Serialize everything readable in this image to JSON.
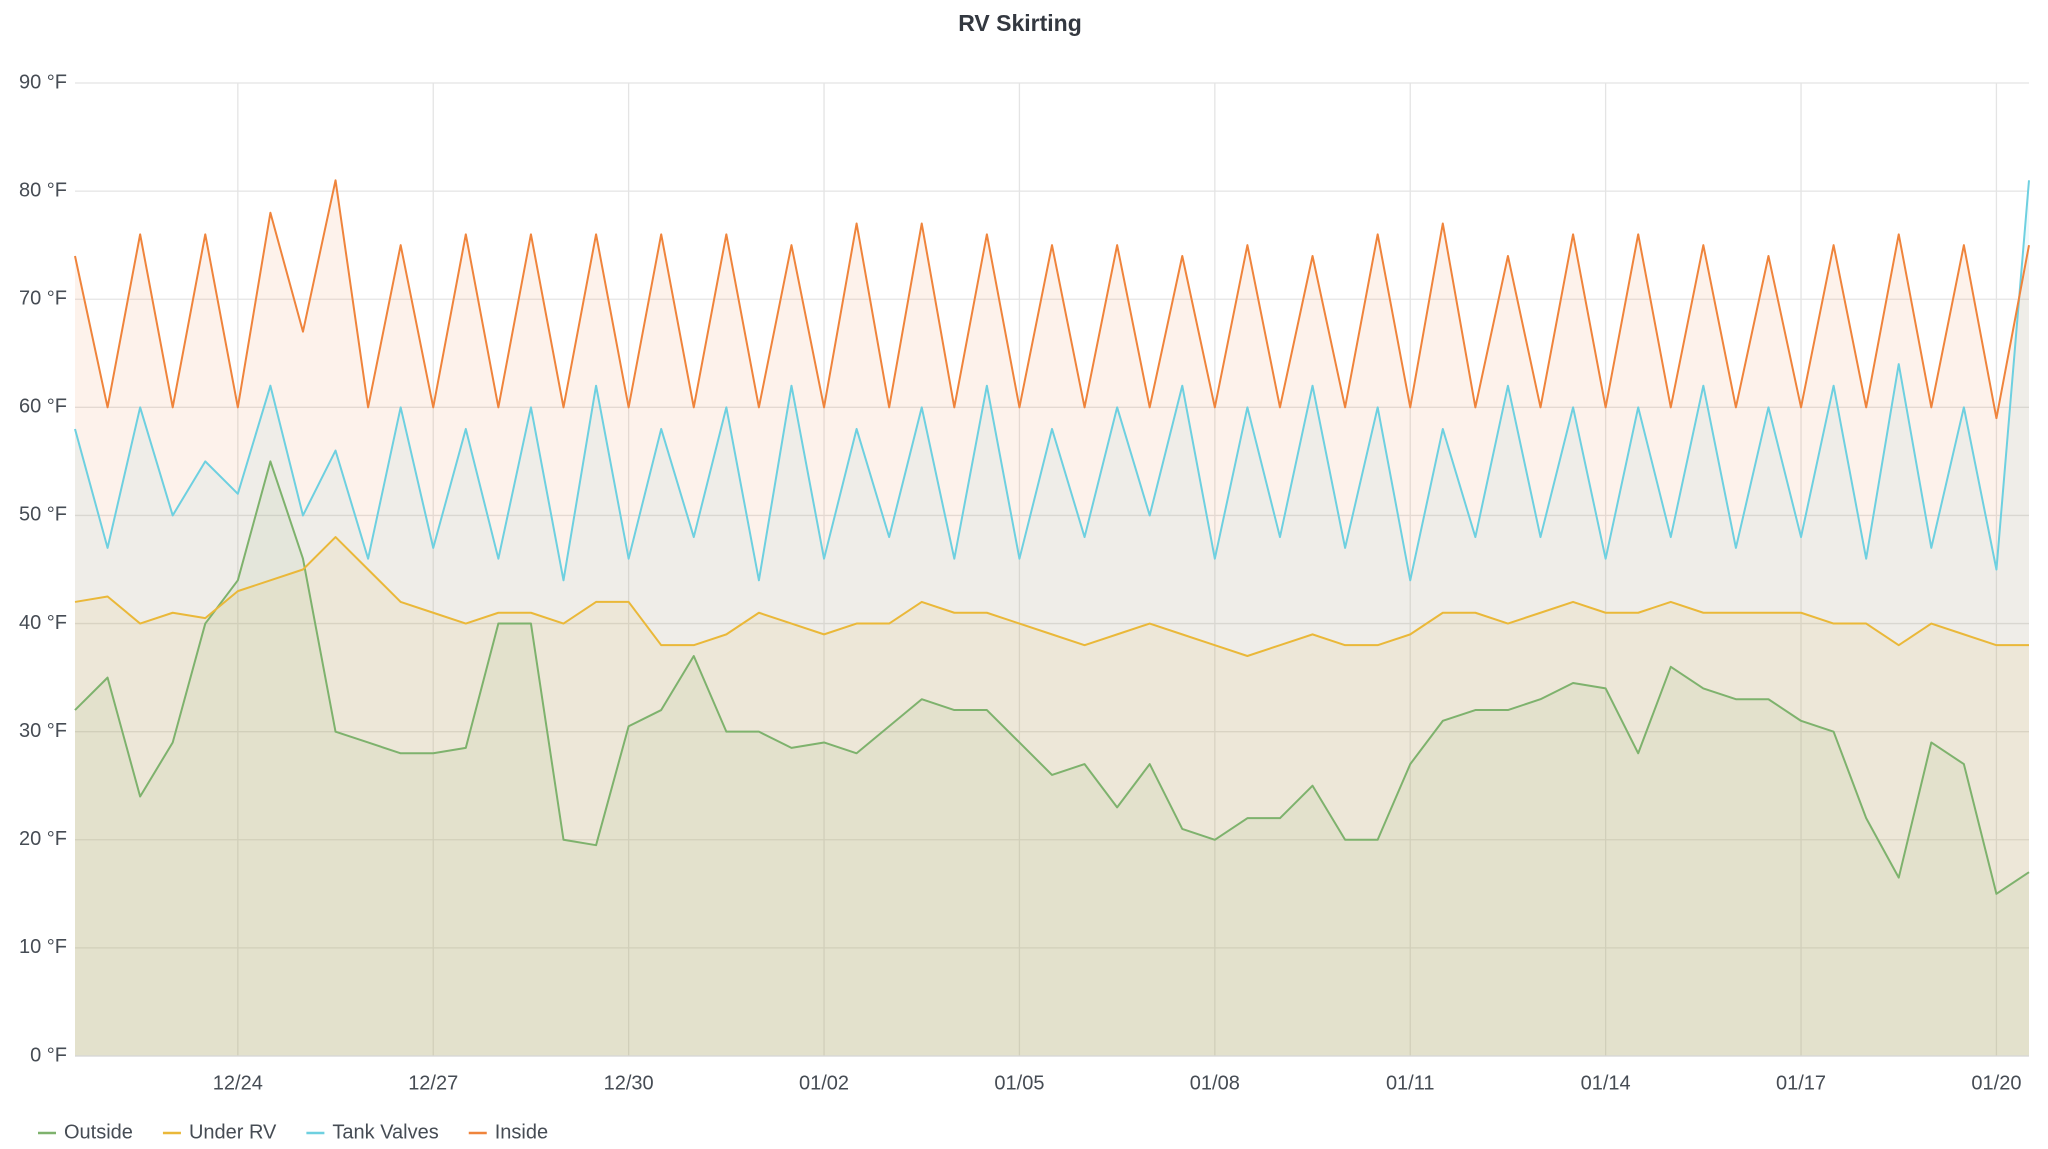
{
  "chart_data": {
    "type": "line",
    "title": "RV Skirting",
    "area": true,
    "grid": true,
    "legend": "bottom-left",
    "x": [
      0.5,
      1,
      1.5,
      2,
      2.5,
      3,
      3.5,
      4,
      4.5,
      5,
      5.5,
      6,
      6.5,
      7,
      7.5,
      8,
      8.5,
      9,
      9.5,
      10,
      10.5,
      11,
      11.5,
      12,
      12.5,
      13,
      13.5,
      14,
      14.5,
      15,
      15.5,
      16,
      16.5,
      17,
      17.5,
      18,
      18.5,
      19,
      19.5,
      20,
      20.5,
      21,
      21.5,
      22,
      22.5,
      23,
      23.5,
      24,
      24.5,
      25,
      25.5,
      26,
      26.5,
      27,
      27.5,
      28,
      28.5,
      29,
      29.5,
      30,
      30.5
    ],
    "xlim": [
      0.5,
      30.5
    ],
    "xticks": [
      {
        "value": 3,
        "label": "12/24"
      },
      {
        "value": 6,
        "label": "12/27"
      },
      {
        "value": 9,
        "label": "12/30"
      },
      {
        "value": 12,
        "label": "01/02"
      },
      {
        "value": 15,
        "label": "01/05"
      },
      {
        "value": 18,
        "label": "01/08"
      },
      {
        "value": 21,
        "label": "01/11"
      },
      {
        "value": 24,
        "label": "01/14"
      },
      {
        "value": 27,
        "label": "01/17"
      },
      {
        "value": 30,
        "label": "01/20"
      }
    ],
    "ylim": [
      0,
      90
    ],
    "yticks": [
      {
        "value": 0,
        "label": "0 °F"
      },
      {
        "value": 10,
        "label": "10 °F"
      },
      {
        "value": 20,
        "label": "20 °F"
      },
      {
        "value": 30,
        "label": "30 °F"
      },
      {
        "value": 40,
        "label": "40 °F"
      },
      {
        "value": 50,
        "label": "50 °F"
      },
      {
        "value": 60,
        "label": "60 °F"
      },
      {
        "value": 70,
        "label": "70 °F"
      },
      {
        "value": 80,
        "label": "80 °F"
      },
      {
        "value": 90,
        "label": "90 °F"
      }
    ],
    "series": [
      {
        "name": "Outside",
        "color": "#7eb26d",
        "values": [
          32,
          35,
          24,
          29,
          40,
          44,
          55,
          46,
          30,
          29,
          28,
          28,
          28.5,
          40,
          40,
          20,
          19.5,
          30.5,
          32,
          37,
          30,
          30,
          28.5,
          29,
          28,
          30.5,
          33,
          32,
          32,
          29,
          26,
          27,
          23,
          27,
          21,
          20,
          22,
          22,
          25,
          20,
          20,
          27,
          31,
          32,
          32,
          33,
          34.5,
          34,
          28,
          36,
          34,
          33,
          33,
          31,
          30,
          22,
          16.5,
          29,
          27,
          15,
          17
        ]
      },
      {
        "name": "Under RV",
        "color": "#eab839",
        "values": [
          42,
          42.5,
          40,
          41,
          40.5,
          43,
          44,
          45,
          48,
          45,
          42,
          41,
          40,
          41,
          41,
          40,
          42,
          42,
          38,
          38,
          39,
          41,
          40,
          39,
          40,
          40,
          42,
          41,
          41,
          40,
          39,
          38,
          39,
          40,
          39,
          38,
          37,
          38,
          39,
          38,
          38,
          39,
          41,
          41,
          40,
          41,
          42,
          41,
          41,
          42,
          41,
          41,
          41,
          41,
          40,
          40,
          38,
          40,
          39,
          38,
          38
        ]
      },
      {
        "name": "Tank Valves",
        "color": "#6ed0e0",
        "values": [
          58,
          47,
          60,
          50,
          55,
          52,
          62,
          50,
          56,
          46,
          60,
          47,
          58,
          46,
          60,
          44,
          62,
          46,
          58,
          48,
          60,
          44,
          62,
          46,
          58,
          48,
          60,
          46,
          62,
          46,
          58,
          48,
          60,
          50,
          62,
          46,
          60,
          48,
          62,
          47,
          60,
          44,
          58,
          48,
          62,
          48,
          60,
          46,
          60,
          48,
          62,
          47,
          60,
          48,
          62,
          46,
          64,
          47,
          60,
          45,
          81
        ]
      },
      {
        "name": "Inside",
        "color": "#ef843c",
        "values": [
          74,
          60,
          76,
          60,
          76,
          60,
          78,
          67,
          81,
          60,
          75,
          60,
          76,
          60,
          76,
          60,
          76,
          60,
          76,
          60,
          76,
          60,
          75,
          60,
          77,
          60,
          77,
          60,
          76,
          60,
          75,
          60,
          75,
          60,
          74,
          60,
          75,
          60,
          74,
          60,
          76,
          60,
          77,
          60,
          74,
          60,
          76,
          60,
          76,
          60,
          75,
          60,
          74,
          60,
          75,
          60,
          76,
          60,
          75,
          59,
          75
        ]
      }
    ]
  }
}
